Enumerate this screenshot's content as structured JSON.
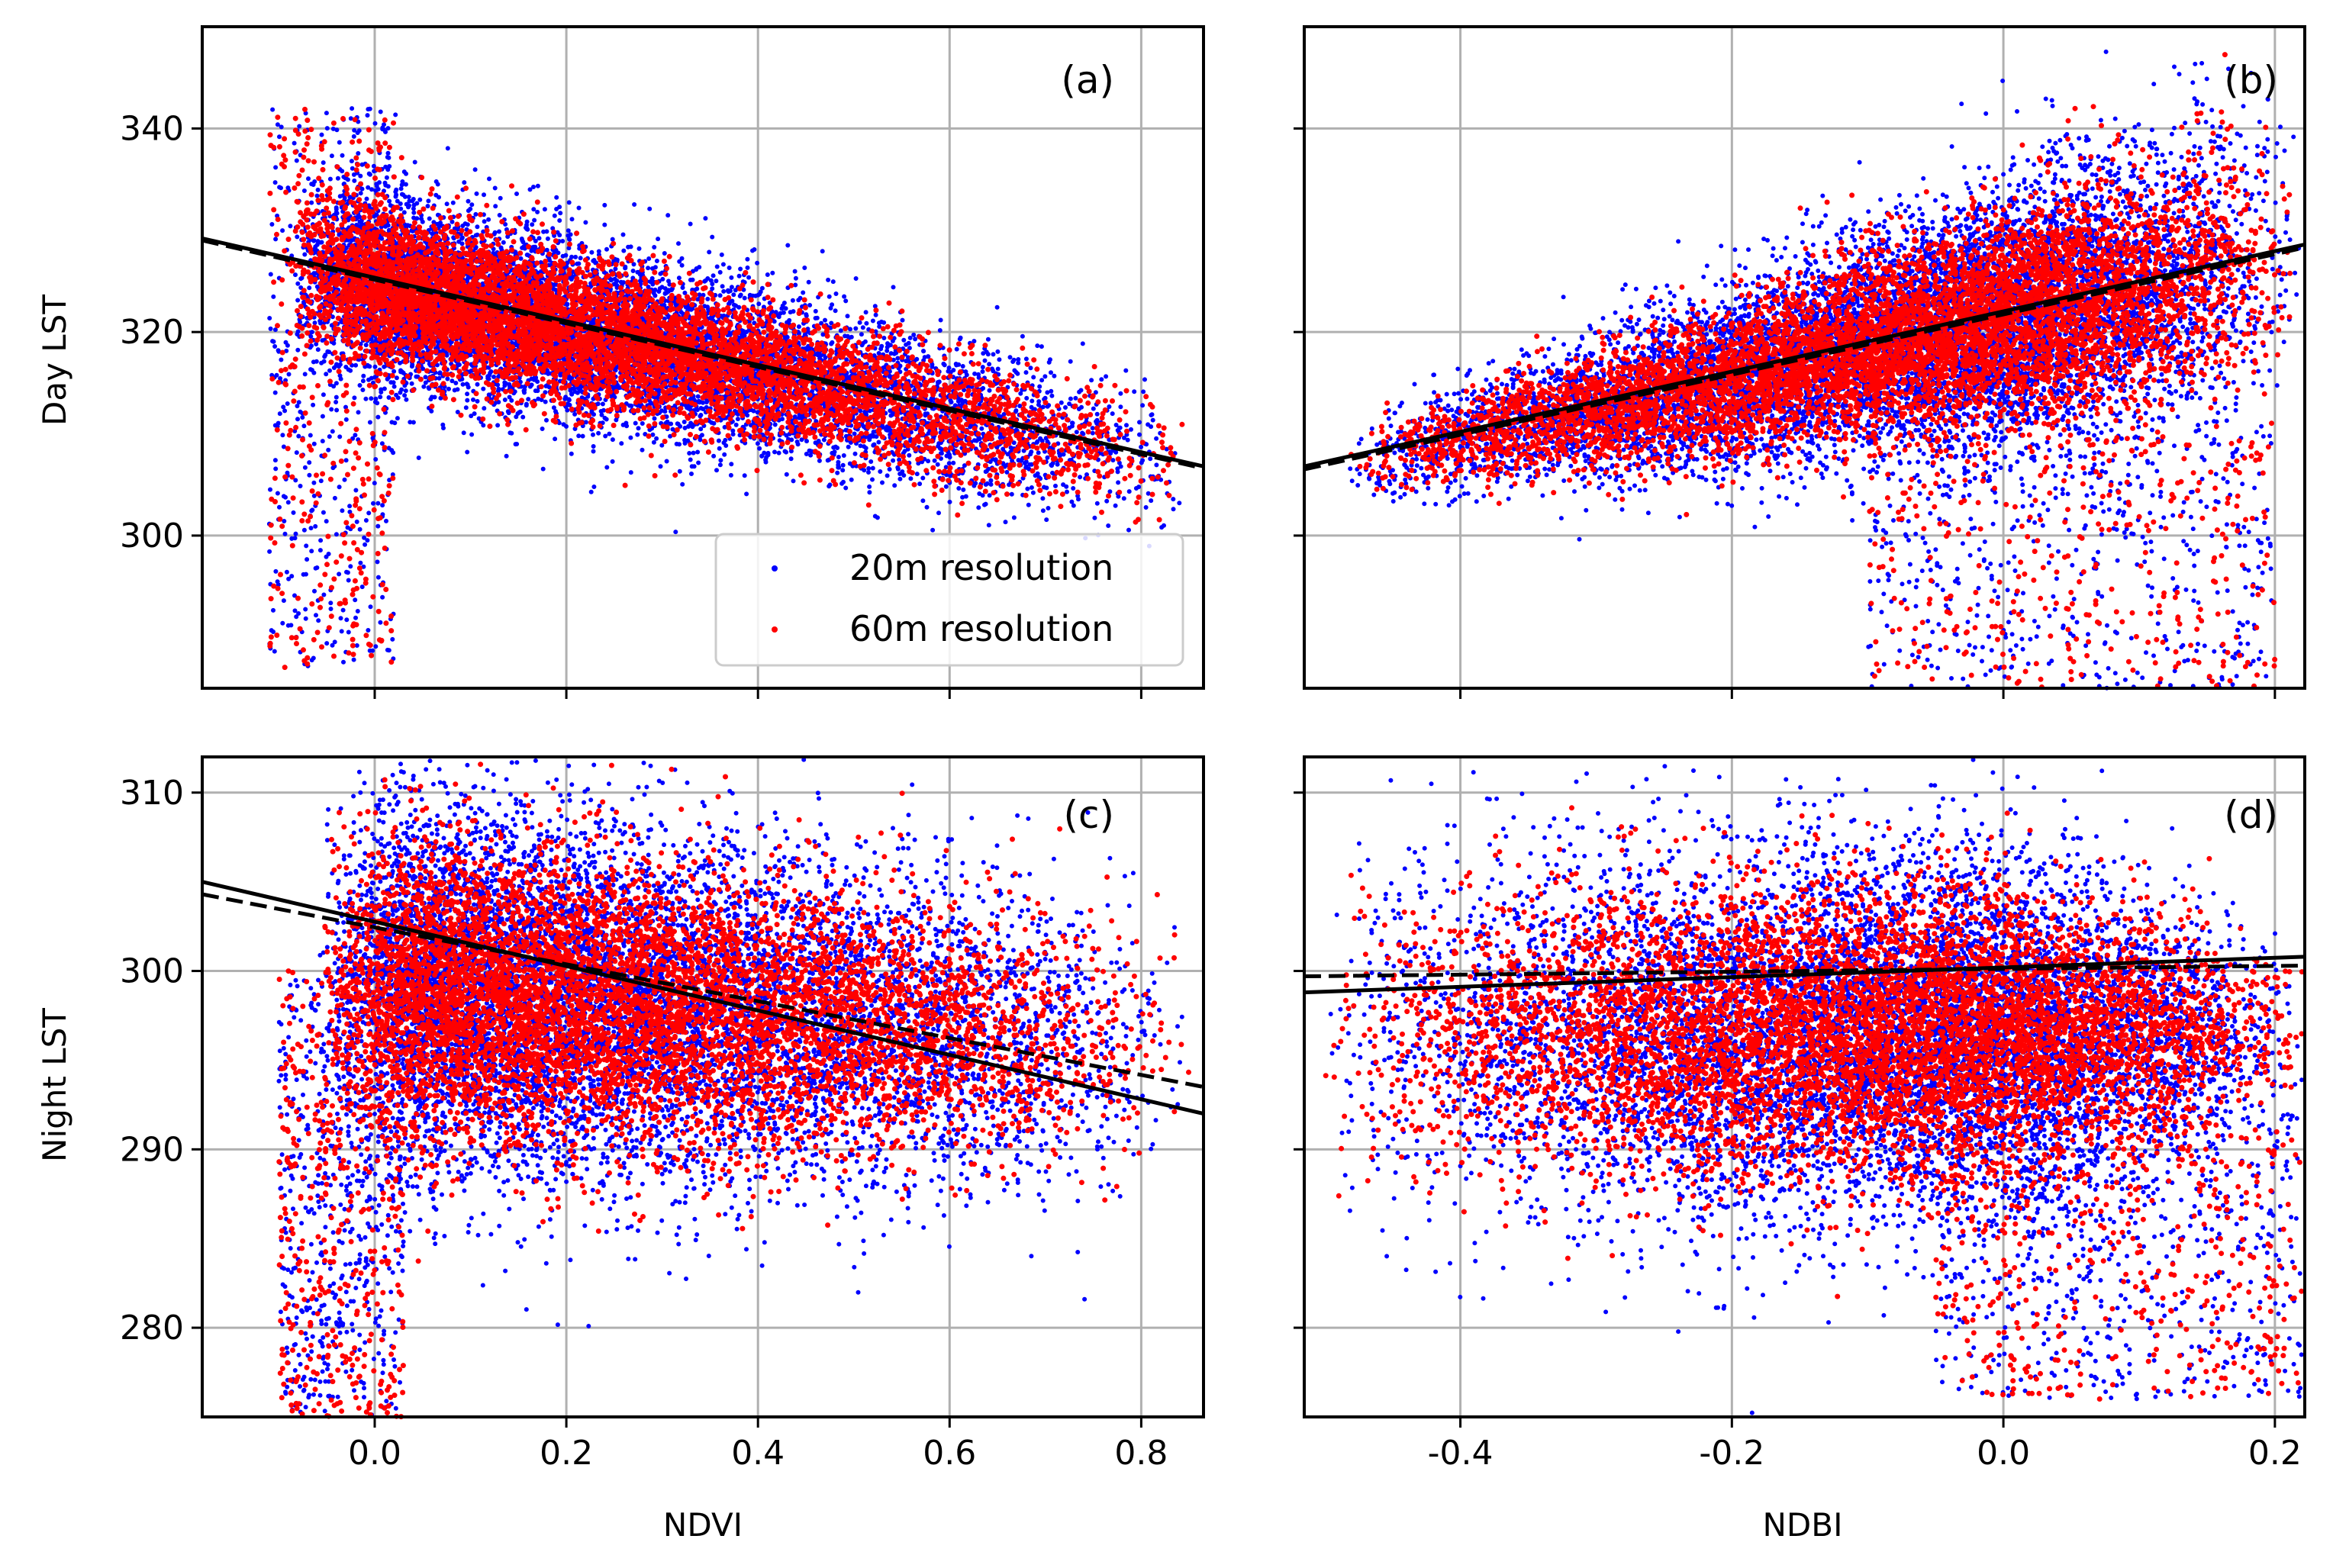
{
  "chart_data": [
    {
      "id": "a",
      "type": "scatter",
      "panel_tag": "(a)",
      "xlabel": "",
      "ylabel": "Day LST",
      "xlim": [
        -0.18,
        0.865
      ],
      "ylim": [
        285,
        350
      ],
      "xticks": [
        0.0,
        0.2,
        0.4,
        0.6,
        0.8
      ],
      "xtick_labels": [
        "0.0",
        "0.2",
        "0.4",
        "0.6",
        "0.8"
      ],
      "yticks": [
        300,
        320,
        340
      ],
      "ytick_labels": [
        "300",
        "320",
        "340"
      ],
      "show_xtick_labels": false,
      "show_ytick_labels": true,
      "grid": true,
      "legend": {
        "position": "lower-right",
        "entries": [
          "20m resolution",
          "60m resolution"
        ]
      },
      "scatter_cloud": {
        "kind": "day_ndvi"
      },
      "fit_lines": [
        {
          "name": "20m fit",
          "style": "solid",
          "x": [
            -0.18,
            0.865
          ],
          "y": [
            329.2,
            306.8
          ]
        },
        {
          "name": "60m fit",
          "style": "dashed",
          "x": [
            -0.18,
            0.865
          ],
          "y": [
            329.0,
            306.6
          ]
        }
      ]
    },
    {
      "id": "b",
      "type": "scatter",
      "panel_tag": "(b)",
      "xlabel": "",
      "ylabel": "",
      "xlim": [
        -0.515,
        0.222
      ],
      "ylim": [
        285,
        350
      ],
      "xticks": [
        -0.4,
        -0.2,
        0.0,
        0.2
      ],
      "xtick_labels": [
        "-0.4",
        "-0.2",
        "0.0",
        "0.2"
      ],
      "yticks": [
        300,
        320,
        340
      ],
      "ytick_labels": [
        "300",
        "320",
        "340"
      ],
      "show_xtick_labels": false,
      "show_ytick_labels": false,
      "grid": true,
      "scatter_cloud": {
        "kind": "day_ndbi"
      },
      "fit_lines": [
        {
          "name": "20m fit",
          "style": "solid",
          "x": [
            -0.515,
            0.222
          ],
          "y": [
            306.8,
            328.6
          ]
        },
        {
          "name": "60m fit",
          "style": "dashed",
          "x": [
            -0.515,
            0.222
          ],
          "y": [
            306.5,
            328.3
          ]
        }
      ]
    },
    {
      "id": "c",
      "type": "scatter",
      "panel_tag": "(c)",
      "xlabel": "NDVI",
      "ylabel": "Night LST",
      "xlim": [
        -0.18,
        0.865
      ],
      "ylim": [
        275,
        312
      ],
      "xticks": [
        0.0,
        0.2,
        0.4,
        0.6,
        0.8
      ],
      "xtick_labels": [
        "0.0",
        "0.2",
        "0.4",
        "0.6",
        "0.8"
      ],
      "yticks": [
        280,
        290,
        300,
        310
      ],
      "ytick_labels": [
        "280",
        "290",
        "300",
        "310"
      ],
      "show_xtick_labels": true,
      "show_ytick_labels": true,
      "grid": true,
      "scatter_cloud": {
        "kind": "night_ndvi"
      },
      "fit_lines": [
        {
          "name": "20m fit",
          "style": "solid",
          "x": [
            -0.18,
            0.865
          ],
          "y": [
            305.0,
            292.0
          ]
        },
        {
          "name": "60m fit",
          "style": "dashed",
          "x": [
            -0.18,
            0.865
          ],
          "y": [
            304.3,
            293.5
          ]
        }
      ]
    },
    {
      "id": "d",
      "type": "scatter",
      "panel_tag": "(d)",
      "xlabel": "NDBI",
      "ylabel": "",
      "xlim": [
        -0.515,
        0.222
      ],
      "ylim": [
        275,
        312
      ],
      "xticks": [
        -0.4,
        -0.2,
        0.0,
        0.2
      ],
      "xtick_labels": [
        "-0.4",
        "-0.2",
        "0.0",
        "0.2"
      ],
      "yticks": [
        280,
        290,
        300,
        310
      ],
      "ytick_labels": [
        "280",
        "290",
        "300",
        "310"
      ],
      "show_xtick_labels": true,
      "show_ytick_labels": false,
      "grid": true,
      "scatter_cloud": {
        "kind": "night_ndbi"
      },
      "fit_lines": [
        {
          "name": "20m fit",
          "style": "solid",
          "x": [
            -0.515,
            0.222
          ],
          "y": [
            298.8,
            300.8
          ]
        },
        {
          "name": "60m fit",
          "style": "dashed",
          "x": [
            -0.515,
            0.222
          ],
          "y": [
            299.7,
            300.3
          ]
        }
      ]
    }
  ],
  "series": [
    {
      "name": "20m resolution",
      "color": "#0000ff"
    },
    {
      "name": "60m resolution",
      "color": "#ff0000"
    }
  ],
  "colors": {
    "grid": "#b0b0b0",
    "axes": "#000000",
    "fit": "#000000"
  }
}
